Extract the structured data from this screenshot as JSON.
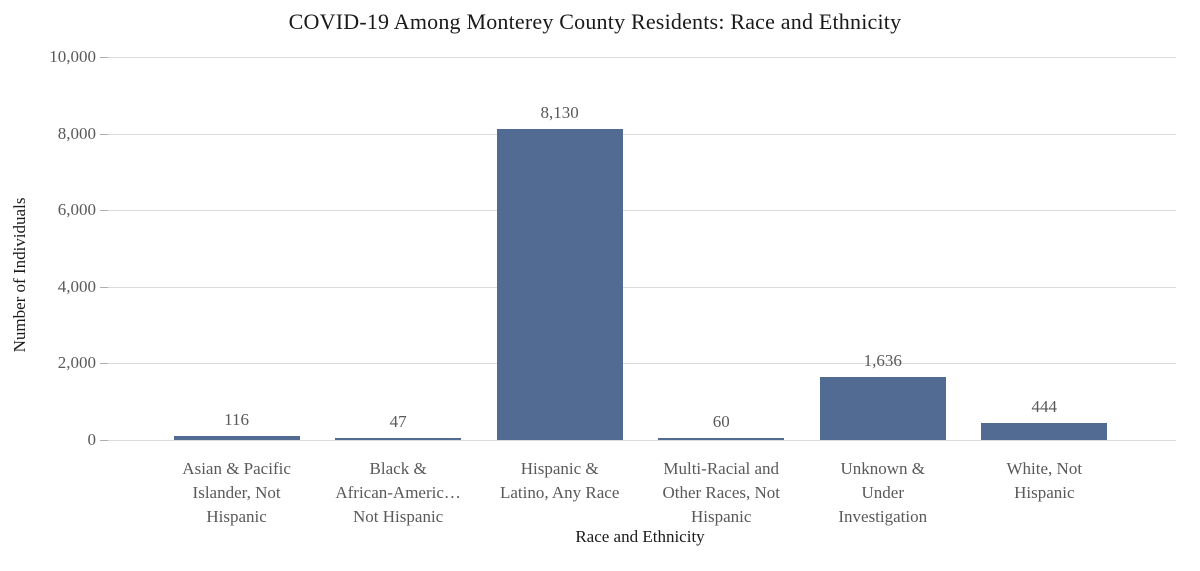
{
  "chart_data": {
    "type": "bar",
    "title": "COVID-19 Among Monterey County Residents: Race and Ethnicity",
    "xlabel": "Race and Ethnicity",
    "ylabel": "Number of Individuals",
    "categories": [
      "Asian & Pacific Islander, Not Hispanic",
      "Black & African-Americ… Not Hispanic",
      "Hispanic & Latino, Any Race",
      "Multi-Racial and Other Races, Not Hispanic",
      "Unknown & Under Investigation",
      "White, Not Hispanic"
    ],
    "category_display_lines": [
      "Asian & Pacific\nIslander, Not\nHispanic",
      "Black &\nAfrican-Americ…\nNot Hispanic",
      "Hispanic &\nLatino, Any Race",
      "Multi-Racial and\nOther Races, Not\nHispanic",
      "Unknown &\nUnder\nInvestigation",
      "White, Not\nHispanic"
    ],
    "values": [
      116,
      47,
      8130,
      60,
      1636,
      444
    ],
    "value_labels": [
      "116",
      "47",
      "8,130",
      "60",
      "1,636",
      "444"
    ],
    "ylim": [
      0,
      10000
    ],
    "yticks": [
      {
        "value": 0,
        "label": "0"
      },
      {
        "value": 2000,
        "label": "2,000"
      },
      {
        "value": 4000,
        "label": "4,000"
      },
      {
        "value": 6000,
        "label": "6,000"
      },
      {
        "value": 8000,
        "label": "8,000"
      },
      {
        "value": 10000,
        "label": "10,000"
      }
    ],
    "grid": "horizontal",
    "legend": "none",
    "colors": {
      "bar": "#526B92",
      "gridline": "#DBDBDB",
      "tick": "#ADADAD",
      "axis_text": "#595959",
      "value_label": "#595959",
      "title_text": "#1A1A1A"
    }
  }
}
